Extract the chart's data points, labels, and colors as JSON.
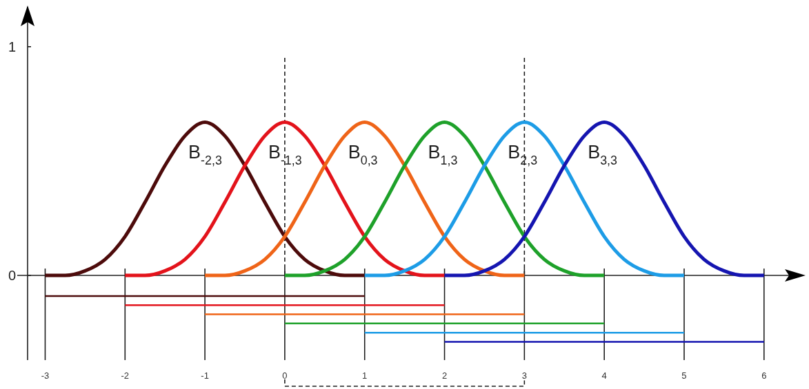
{
  "chart_data": {
    "type": "line",
    "xlim": [
      -3.22,
      6.52
    ],
    "ylim": [
      -0.37,
      1.18
    ],
    "xticks": [
      -3,
      -2,
      -1,
      0,
      1,
      2,
      3,
      4,
      5,
      6
    ],
    "yticks": [
      0,
      1
    ],
    "marker": "none",
    "line_style": "solid",
    "series": [
      {
        "name": "B$_{-2,3}$",
        "color": "#4d0b0b",
        "x": [
          -3,
          -2.75,
          -2.5,
          -2.25,
          -2,
          -1.75,
          -1.5,
          -1.25,
          -1,
          -0.75,
          -0.5,
          -0.25,
          0,
          0.25,
          0.5,
          0.75,
          1
        ],
        "values": [
          0,
          0,
          0.02,
          0.07,
          0.17,
          0.32,
          0.48,
          0.61,
          0.67,
          0.61,
          0.48,
          0.32,
          0.17,
          0.07,
          0.02,
          0,
          0
        ]
      },
      {
        "name": "B$_{-1,3}$",
        "color": "#e3131b",
        "x": [
          -2,
          -1.75,
          -1.5,
          -1.25,
          -1,
          -0.75,
          -0.5,
          -0.25,
          0,
          0.25,
          0.5,
          0.75,
          1,
          1.25,
          1.5,
          1.75,
          2
        ],
        "values": [
          0,
          0,
          0.02,
          0.07,
          0.17,
          0.32,
          0.48,
          0.61,
          0.67,
          0.61,
          0.48,
          0.32,
          0.17,
          0.07,
          0.02,
          0,
          0
        ]
      },
      {
        "name": "B$_{0,3}$",
        "color": "#ef6418",
        "x": [
          -1,
          -0.75,
          -0.5,
          -0.25,
          0,
          0.25,
          0.5,
          0.75,
          1,
          1.25,
          1.5,
          1.75,
          2,
          2.25,
          2.5,
          2.75,
          3
        ],
        "values": [
          0,
          0,
          0.02,
          0.07,
          0.17,
          0.32,
          0.48,
          0.61,
          0.67,
          0.61,
          0.48,
          0.32,
          0.17,
          0.07,
          0.02,
          0,
          0
        ]
      },
      {
        "name": "B$_{1,3}$",
        "color": "#1ea12a",
        "x": [
          0,
          0.25,
          0.5,
          0.75,
          1,
          1.25,
          1.5,
          1.75,
          2,
          2.25,
          2.5,
          2.75,
          3,
          3.25,
          3.5,
          3.75,
          4
        ],
        "values": [
          0,
          0,
          0.02,
          0.07,
          0.17,
          0.32,
          0.48,
          0.61,
          0.67,
          0.61,
          0.48,
          0.32,
          0.17,
          0.07,
          0.02,
          0,
          0
        ]
      },
      {
        "name": "B$_{2,3}$",
        "color": "#1d9ce6",
        "x": [
          1,
          1.25,
          1.5,
          1.75,
          2,
          2.25,
          2.5,
          2.75,
          3,
          3.25,
          3.5,
          3.75,
          4,
          4.25,
          4.5,
          4.75,
          5
        ],
        "values": [
          0,
          0,
          0.02,
          0.07,
          0.17,
          0.32,
          0.48,
          0.61,
          0.67,
          0.61,
          0.48,
          0.32,
          0.17,
          0.07,
          0.02,
          0,
          0
        ]
      },
      {
        "name": "B$_{3,3}$",
        "color": "#1515b0",
        "x": [
          2,
          2.25,
          2.5,
          2.75,
          3,
          3.25,
          3.5,
          3.75,
          4,
          4.25,
          4.5,
          4.75,
          5,
          5.25,
          5.5,
          5.75,
          6
        ],
        "values": [
          0,
          0,
          0.02,
          0.07,
          0.17,
          0.32,
          0.48,
          0.61,
          0.67,
          0.61,
          0.48,
          0.32,
          0.17,
          0.07,
          0.02,
          0,
          0
        ]
      },
      {
        "color": "#4d0b0b",
        "x": [
          -3,
          1
        ],
        "values": [
          -0.09,
          -0.09
        ]
      },
      {
        "color": "#e3131b",
        "x": [
          -2,
          2
        ],
        "values": [
          -0.13,
          -0.13
        ]
      },
      {
        "color": "#ef6418",
        "x": [
          -1,
          3
        ],
        "values": [
          -0.17,
          -0.17
        ]
      },
      {
        "color": "#1ea12a",
        "x": [
          0,
          4
        ],
        "values": [
          -0.21,
          -0.21
        ]
      },
      {
        "color": "#1d9ce6",
        "x": [
          1,
          5
        ],
        "values": [
          -0.25,
          -0.25
        ]
      },
      {
        "color": "#1515b0",
        "x": [
          2,
          6
        ],
        "values": [
          -0.29,
          -0.29
        ]
      }
    ],
    "ref_lines": [
      {
        "axis": "x",
        "value": 0,
        "line_style": "dashed"
      },
      {
        "axis": "x",
        "value": 3,
        "line_style": "dashed"
      },
      {
        "axis": "x",
        "value": -3,
        "line_style": "solid"
      },
      {
        "axis": "x",
        "value": -2,
        "line_style": "solid"
      },
      {
        "axis": "x",
        "value": -1,
        "line_style": "solid"
      },
      {
        "axis": "x",
        "value": 0,
        "line_style": "solid"
      },
      {
        "axis": "x",
        "value": 1,
        "line_style": "solid"
      },
      {
        "axis": "x",
        "value": 2,
        "line_style": "solid"
      },
      {
        "axis": "x",
        "value": 3,
        "line_style": "solid"
      },
      {
        "axis": "x",
        "value": 4,
        "line_style": "solid"
      },
      {
        "axis": "x",
        "value": 5,
        "line_style": "solid"
      },
      {
        "axis": "x",
        "value": 6,
        "line_style": "solid"
      }
    ]
  }
}
